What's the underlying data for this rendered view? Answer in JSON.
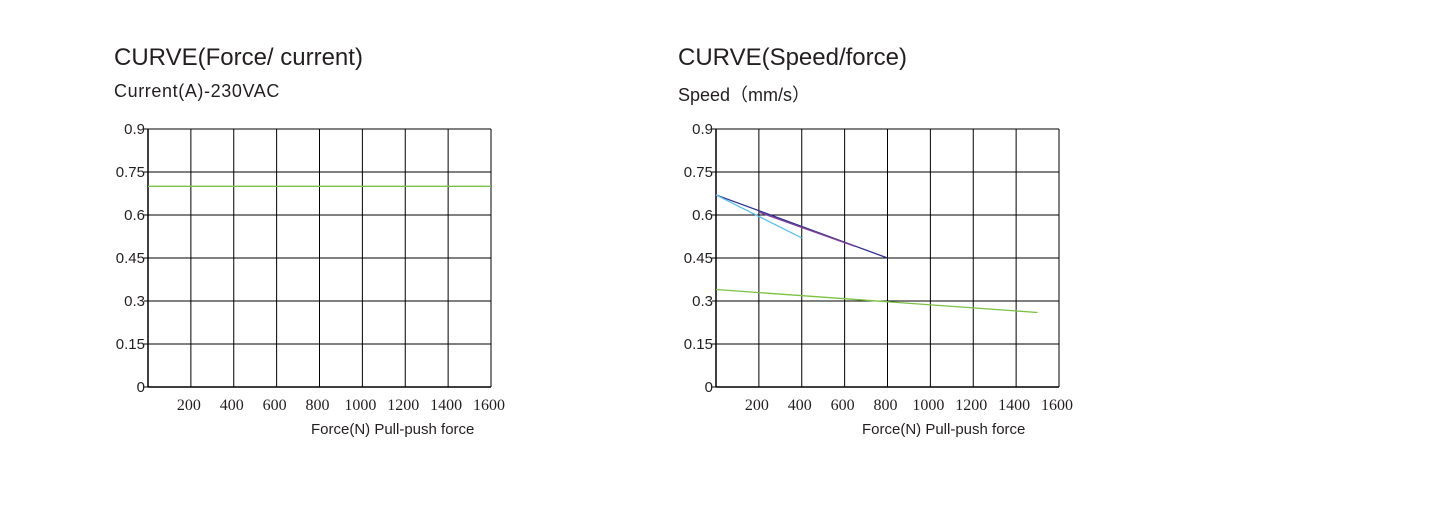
{
  "chart_data": [
    {
      "type": "line",
      "title": "CURVE(Force/ current)",
      "ylabel": "Current(A)-230VAC",
      "xlabel": "Force(N) Pull-push force",
      "x_ticks": [
        200,
        400,
        600,
        800,
        1000,
        1200,
        1400,
        1600
      ],
      "y_ticks": [
        0,
        0.15,
        0.3,
        0.45,
        0.6,
        0.75,
        0.9
      ],
      "y_tick_labels": [
        "0",
        "0.15",
        "0.3",
        "0.45",
        "0.6",
        "0.75",
        "0.9"
      ],
      "xlim": [
        0,
        1600
      ],
      "ylim": [
        0,
        0.9
      ],
      "grid": true,
      "series": [
        {
          "color": "#7bc143",
          "x": [
            0,
            1600
          ],
          "y": [
            0.7,
            0.7
          ]
        }
      ]
    },
    {
      "type": "line",
      "title": "CURVE(Speed/force)",
      "ylabel": "Speed（mm/s）",
      "xlabel": "Force(N) Pull-push force",
      "x_ticks": [
        200,
        400,
        600,
        800,
        1000,
        1200,
        1400,
        1600
      ],
      "y_ticks": [
        0,
        0.15,
        0.3,
        0.45,
        0.6,
        0.75,
        0.9
      ],
      "y_tick_labels": [
        "0",
        "0.15",
        "0.3",
        "0.45",
        "0.6",
        "0.75",
        "0.9"
      ],
      "xlim": [
        0,
        1600
      ],
      "ylim": [
        0,
        0.9
      ],
      "grid": true,
      "series": [
        {
          "color": "#2e3192",
          "x": [
            0,
            800
          ],
          "y": [
            0.67,
            0.45
          ]
        },
        {
          "color": "#7f3f98",
          "x": [
            200,
            650
          ],
          "y": [
            0.61,
            0.49
          ]
        },
        {
          "color": "#5bc0eb",
          "x": [
            0,
            400
          ],
          "y": [
            0.67,
            0.52
          ]
        },
        {
          "color": "#7bc143",
          "x": [
            0,
            1500
          ],
          "y": [
            0.34,
            0.26
          ]
        }
      ]
    }
  ]
}
